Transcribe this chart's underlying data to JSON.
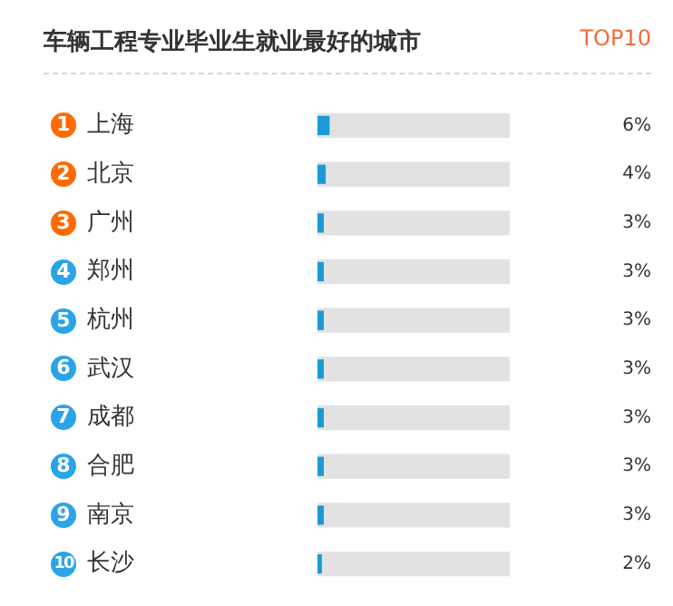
{
  "chart_data": {
    "type": "bar",
    "orientation": "horizontal",
    "title": "车辆工程专业毕业生就业最好的城市",
    "subtitle": "TOP10",
    "categories": [
      "上海",
      "北京",
      "广州",
      "郑州",
      "杭州",
      "武汉",
      "成都",
      "合肥",
      "南京",
      "长沙"
    ],
    "series": [
      {
        "color": "#1a9bd7",
        "values": [
          6,
          4,
          3,
          3,
          3,
          3,
          3,
          3,
          3,
          2
        ],
        "value_labels": [
          "6%",
          "4%",
          "3%",
          "3%",
          "3%",
          "3%",
          "3%",
          "3%",
          "3%",
          "2%"
        ]
      },
      {
        "color": "#e2e2e2",
        "values": [
          100,
          100,
          100,
          100,
          100,
          100,
          100,
          100,
          100,
          100
        ]
      }
    ],
    "annotations": [
      "1",
      "2",
      "3",
      "4",
      "5",
      "6",
      "7",
      "8",
      "9",
      "10"
    ],
    "xlim": [
      0,
      100
    ],
    "tick_labels": "y",
    "grid": false,
    "legend": false
  }
}
